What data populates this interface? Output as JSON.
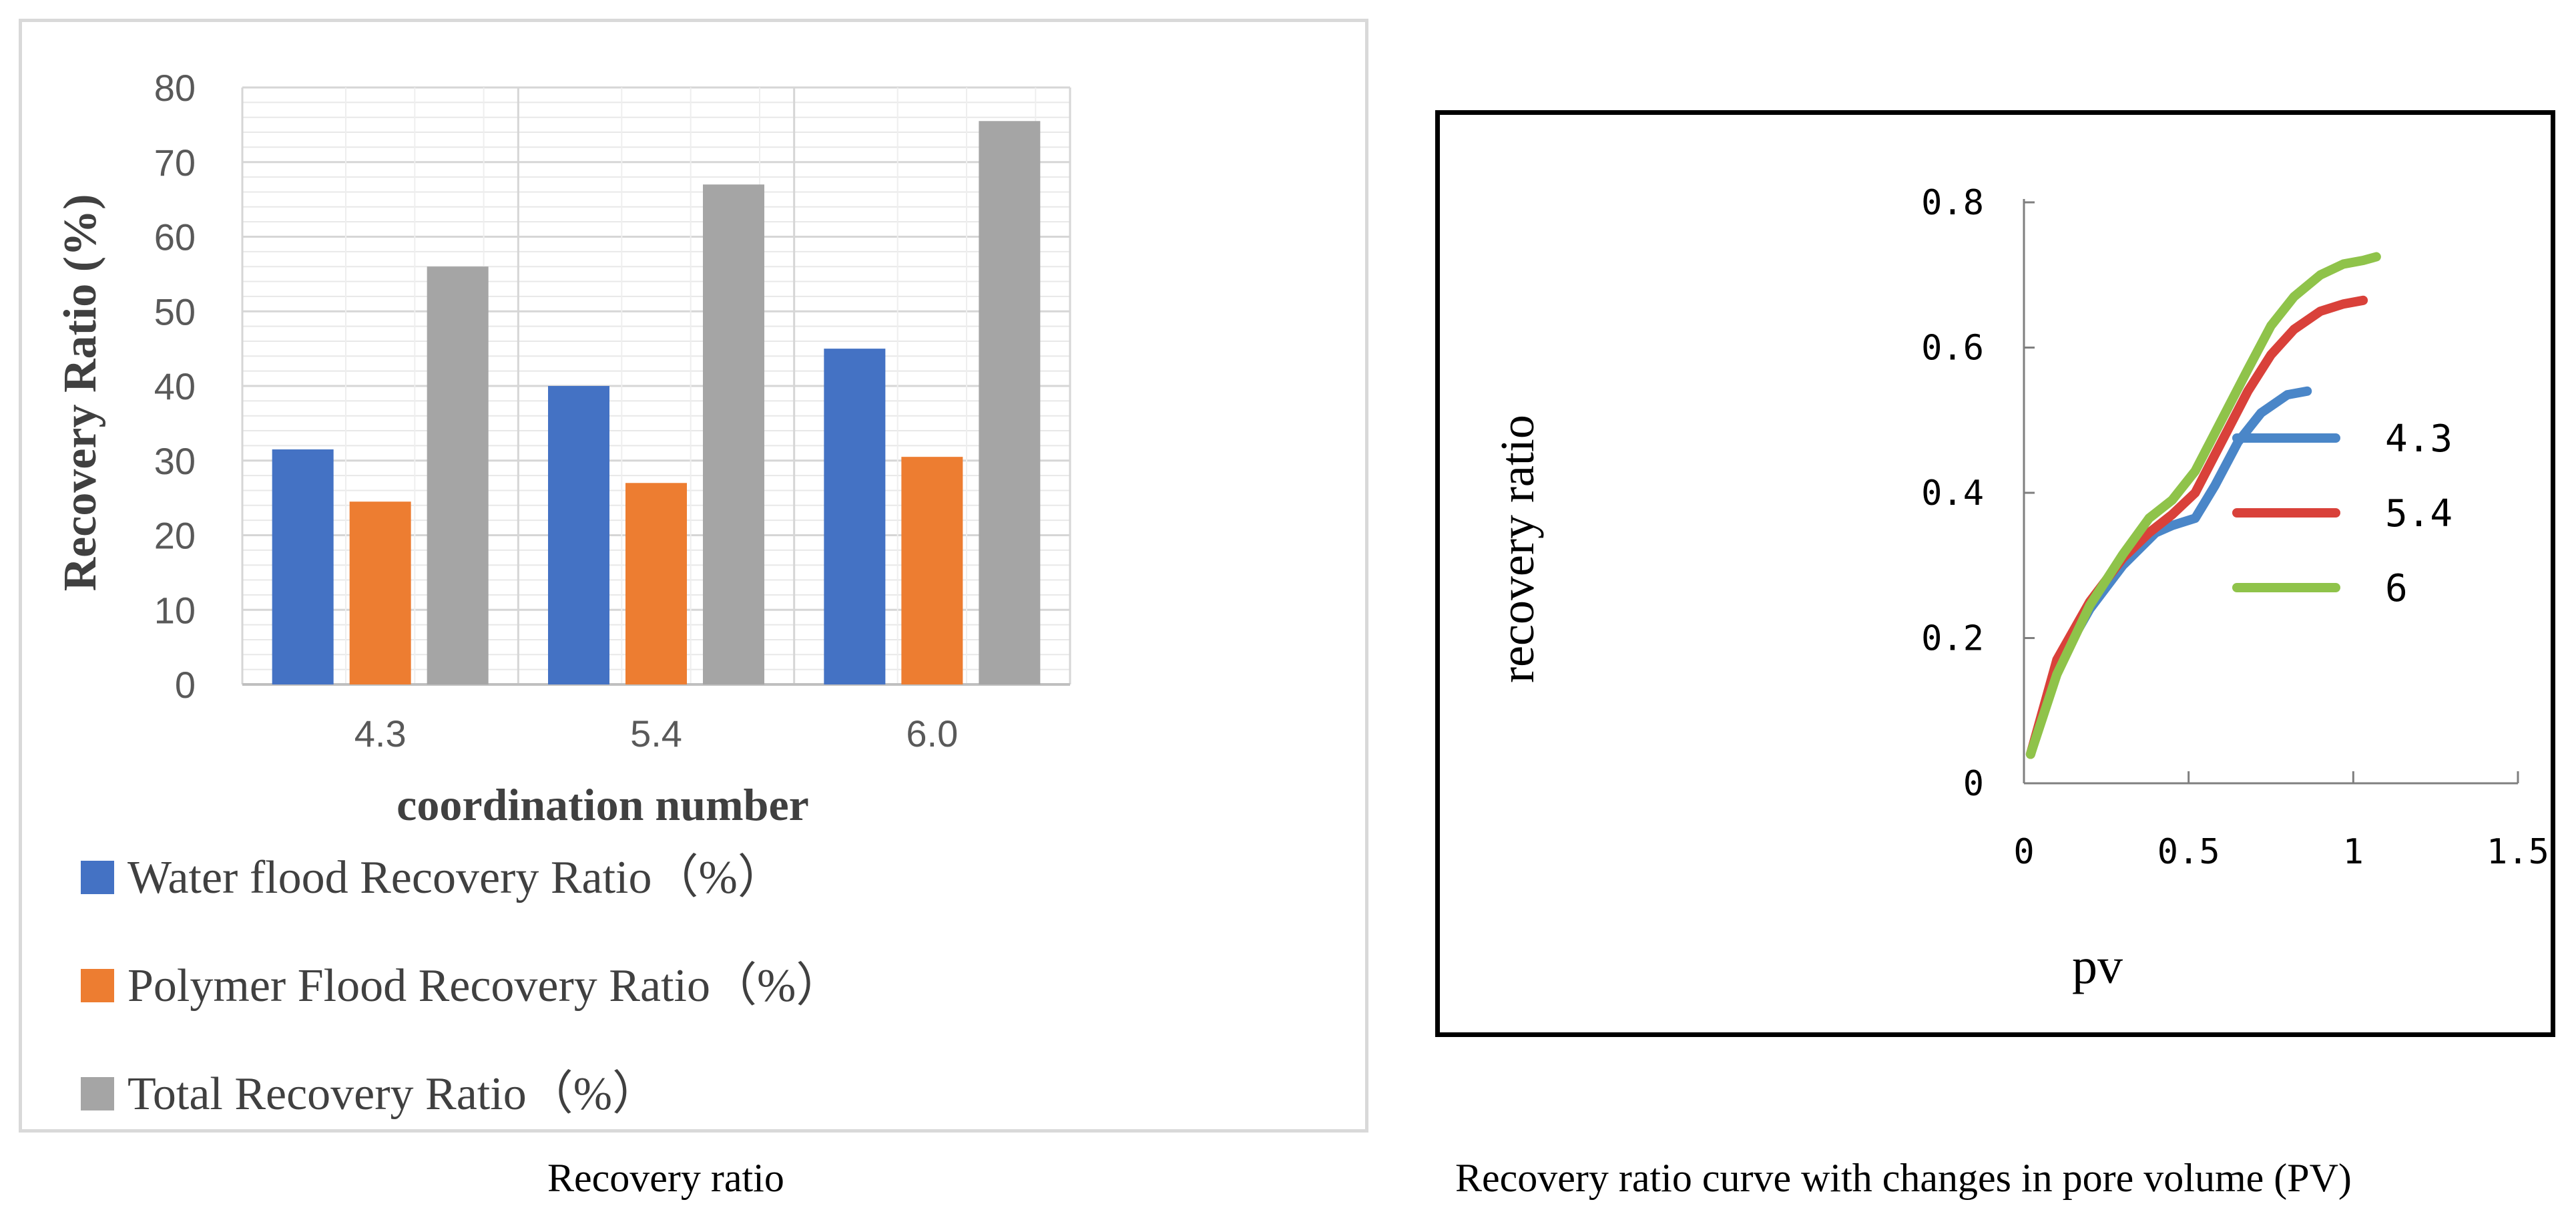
{
  "chart_data": [
    {
      "type": "bar",
      "categories": [
        "4.3",
        "5.4",
        "6.0"
      ],
      "series": [
        {
          "name": "Water flood Recovery Ratio（%）",
          "values": [
            31.5,
            40,
            45
          ],
          "color": "#4472c4"
        },
        {
          "name": "Polymer Flood Recovery Ratio（%）",
          "values": [
            24.5,
            27,
            30.5
          ],
          "color": "#ed7d31"
        },
        {
          "name": "Total Recovery Ratio（%）",
          "values": [
            56,
            67,
            75.5
          ],
          "color": "#a5a5a5"
        }
      ],
      "yticks": [
        "0",
        "10",
        "20",
        "30",
        "40",
        "50",
        "60",
        "70",
        "80"
      ],
      "ylim": [
        0,
        80
      ],
      "xlabel": "coordination number",
      "ylabel": "Recovery Ratio (%)",
      "grid": true,
      "legend_placement": "bottom"
    },
    {
      "type": "line",
      "series": [
        {
          "name": "4.3",
          "color": "#4a86c8",
          "x": [
            0.02,
            0.1,
            0.2,
            0.3,
            0.4,
            0.45,
            0.52,
            0.58,
            0.65,
            0.72,
            0.8,
            0.86
          ],
          "y": [
            0.04,
            0.16,
            0.24,
            0.3,
            0.345,
            0.355,
            0.365,
            0.41,
            0.47,
            0.51,
            0.535,
            0.54
          ]
        },
        {
          "name": "5.4",
          "color": "#d9413a",
          "x": [
            0.02,
            0.1,
            0.2,
            0.3,
            0.38,
            0.45,
            0.52,
            0.6,
            0.68,
            0.75,
            0.82,
            0.9,
            0.97,
            1.03
          ],
          "y": [
            0.04,
            0.17,
            0.25,
            0.31,
            0.345,
            0.37,
            0.4,
            0.47,
            0.54,
            0.59,
            0.625,
            0.65,
            0.66,
            0.665
          ]
        },
        {
          "name": "6",
          "color": "#8fc34a",
          "x": [
            0.02,
            0.1,
            0.2,
            0.3,
            0.38,
            0.45,
            0.52,
            0.6,
            0.68,
            0.75,
            0.82,
            0.9,
            0.97,
            1.03,
            1.07
          ],
          "y": [
            0.04,
            0.15,
            0.245,
            0.315,
            0.365,
            0.39,
            0.43,
            0.5,
            0.57,
            0.63,
            0.67,
            0.7,
            0.715,
            0.72,
            0.725
          ]
        }
      ],
      "xticks": [
        "0",
        "0.5",
        "1",
        "1.5"
      ],
      "yticks": [
        "0",
        "0.2",
        "0.4",
        "0.6",
        "0.8"
      ],
      "xlim": [
        0,
        1.5
      ],
      "ylim": [
        0,
        0.8
      ],
      "xlabel": "pv",
      "ylabel": "recovery ratio",
      "grid": false,
      "legend_placement": "right"
    }
  ],
  "captions": {
    "left": "Recovery ratio",
    "right": "Recovery ratio curve with changes in pore volume (PV)"
  }
}
